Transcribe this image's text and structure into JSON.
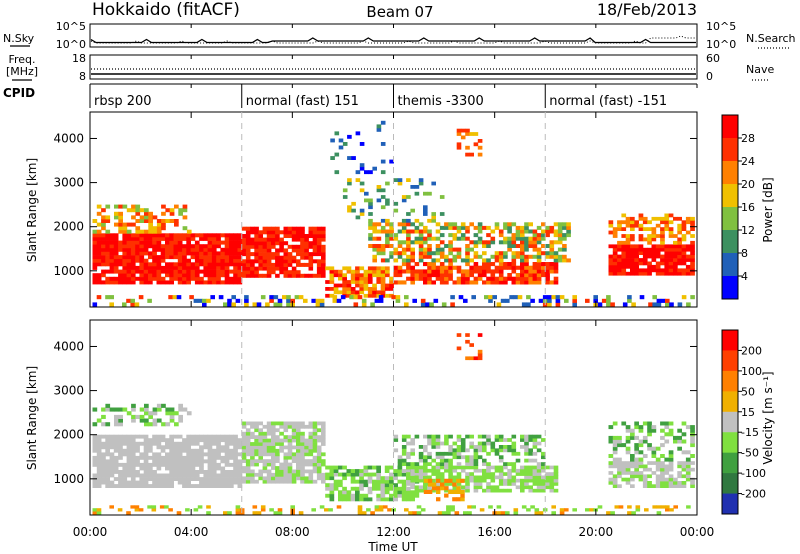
{
  "header": {
    "station": "Hokkaido (fitACF)",
    "beam": "Beam 07",
    "date": "18/Feb/2013"
  },
  "side_labels": {
    "nsky": "N.Sky",
    "nsky_ticks": [
      "10^5",
      "10^0"
    ],
    "nsearch": "N.Search",
    "nsearch_ticks": [
      "10^5",
      "10^0"
    ],
    "freq_line1": "Freq.",
    "freq_line2": "[MHz]",
    "freq_ticks": [
      "18",
      "8"
    ],
    "nave": "Nave",
    "nave_ticks": [
      "60",
      "0"
    ],
    "cpid": "CPID"
  },
  "cpid_segments": [
    {
      "label": "rbsp 200",
      "start_hour": 0
    },
    {
      "label": "normal (fast) 151",
      "start_hour": 6
    },
    {
      "label": "themis -3300",
      "start_hour": 12
    },
    {
      "label": "normal (fast) -151",
      "start_hour": 18
    }
  ],
  "chart_data": [
    {
      "type": "heatmap",
      "panel": "power",
      "ylabel": "Slant Range [km]",
      "y_ticks": [
        "1000",
        "2000",
        "3000",
        "4000"
      ],
      "ylim": [
        180,
        4600
      ],
      "colorbar_label": "Power [dB]",
      "colorbar_ticks": [
        "4",
        "8",
        "12",
        "16",
        "20",
        "24",
        "28"
      ],
      "colorbar_colors": [
        "#0000ff",
        "#2060b8",
        "#3c9060",
        "#80c040",
        "#f0c000",
        "#ff8000",
        "#ff3000",
        "#ff0000"
      ]
    },
    {
      "type": "heatmap",
      "panel": "velocity",
      "ylabel": "Slant Range [km]",
      "y_ticks": [
        "1000",
        "2000",
        "3000",
        "4000"
      ],
      "ylim": [
        180,
        4600
      ],
      "colorbar_label": "Velocity [m s⁻¹]",
      "colorbar_ticks": [
        "200",
        "100",
        "50",
        "15",
        "-15",
        "-50",
        "-100",
        "-200"
      ],
      "colorbar_colors": [
        "#2030b0",
        "#307840",
        "#40a040",
        "#80e040",
        "#c0c0c0",
        "#f0b000",
        "#ff8000",
        "#ff4000",
        "#ff0000"
      ]
    }
  ],
  "x_axis": {
    "label": "Time UT",
    "ticks": [
      "00:00",
      "04:00",
      "08:00",
      "12:00",
      "16:00",
      "20:00",
      "00:00"
    ],
    "range_hours": [
      0,
      24
    ]
  }
}
